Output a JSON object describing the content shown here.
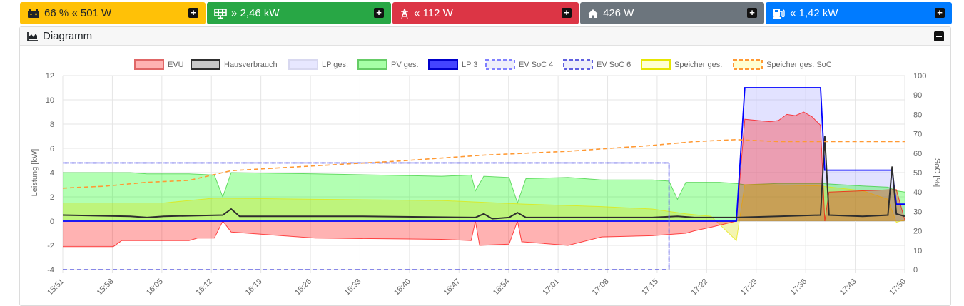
{
  "tiles": [
    {
      "name": "battery",
      "icon": "car-battery-icon",
      "arrow": "«",
      "label": "66 % « 501 W",
      "bg": "#ffc107",
      "fg": "#212529"
    },
    {
      "name": "pv",
      "icon": "solar-panel-icon",
      "arrow": "»",
      "label": "» 2,46 kW",
      "bg": "#28a745",
      "fg": "#ffffff"
    },
    {
      "name": "evu",
      "icon": "power-tower-icon",
      "arrow": "«",
      "label": "« 112 W",
      "bg": "#dc3545",
      "fg": "#ffffff"
    },
    {
      "name": "house",
      "icon": "home-icon",
      "label": "426 W",
      "bg": "#6c757d",
      "fg": "#ffffff"
    },
    {
      "name": "chargepoint",
      "icon": "charging-station-icon",
      "label": "« 1,42 kW",
      "bg": "#007bff",
      "fg": "#ffffff"
    }
  ],
  "diagram": {
    "title": "Diagramm"
  },
  "chart_data": {
    "type": "area",
    "x": [
      "15:51",
      "15:58",
      "16:05",
      "16:12",
      "16:19",
      "16:26",
      "16:33",
      "16:40",
      "16:47",
      "16:54",
      "17:01",
      "17:08",
      "17:15",
      "17:22",
      "17:29",
      "17:36",
      "17:43",
      "17:50"
    ],
    "ylabel_left": "Leistung [kW]",
    "ylabel_right": "SoC [%]",
    "ylim_left": [
      -4,
      12
    ],
    "yticks_left": [
      "-4",
      "-2",
      "0",
      "2",
      "4",
      "6",
      "8",
      "10",
      "12"
    ],
    "ylim_right": [
      0,
      100
    ],
    "yticks_right": [
      "0",
      "10",
      "20",
      "30",
      "40",
      "50",
      "60",
      "70",
      "80",
      "90",
      "100"
    ],
    "grid": true,
    "legend_position": "top",
    "series": [
      {
        "name": "EVU",
        "color": "#ff0000",
        "fill": "rgba(255,0,0,0.3)",
        "style": "fill",
        "points": [
          [
            0,
            -2.1
          ],
          [
            0.06,
            -2.1
          ],
          [
            0.07,
            -1.6
          ],
          [
            0.15,
            -1.6
          ],
          [
            0.16,
            -1.4
          ],
          [
            0.18,
            -1.4
          ],
          [
            0.19,
            0
          ],
          [
            0.2,
            -0.9
          ],
          [
            0.3,
            -1.4
          ],
          [
            0.45,
            -1.5
          ],
          [
            0.485,
            -1.6
          ],
          [
            0.49,
            0
          ],
          [
            0.495,
            -2.0
          ],
          [
            0.53,
            -1.9
          ],
          [
            0.54,
            0
          ],
          [
            0.545,
            -1.7
          ],
          [
            0.6,
            -2.0
          ],
          [
            0.64,
            -1.3
          ],
          [
            0.7,
            -1.2
          ],
          [
            0.74,
            -1.0
          ],
          [
            0.75,
            -0.8
          ],
          [
            0.77,
            -0.5
          ],
          [
            0.8,
            0
          ],
          [
            0.81,
            8.4
          ],
          [
            0.84,
            8.2
          ],
          [
            0.85,
            8.3
          ],
          [
            0.86,
            8.8
          ],
          [
            0.87,
            8.7
          ],
          [
            0.88,
            9.0
          ],
          [
            0.89,
            8.6
          ],
          [
            0.9,
            7.9
          ],
          [
            0.905,
            0
          ],
          [
            0.91,
            2.4
          ],
          [
            0.95,
            2.5
          ],
          [
            0.99,
            2.6
          ],
          [
            1.0,
            0.1
          ]
        ]
      },
      {
        "name": "Hausverbrauch",
        "color": "#2e2e2e",
        "style": "line",
        "points": [
          [
            0,
            0.5
          ],
          [
            0.08,
            0.4
          ],
          [
            0.1,
            0.3
          ],
          [
            0.12,
            0.4
          ],
          [
            0.19,
            0.5
          ],
          [
            0.2,
            1.0
          ],
          [
            0.21,
            0.4
          ],
          [
            0.35,
            0.4
          ],
          [
            0.49,
            0.3
          ],
          [
            0.5,
            0.6
          ],
          [
            0.51,
            0.2
          ],
          [
            0.53,
            0.3
          ],
          [
            0.54,
            0.7
          ],
          [
            0.55,
            0.3
          ],
          [
            0.7,
            0.3
          ],
          [
            0.73,
            0.4
          ],
          [
            0.75,
            0.3
          ],
          [
            0.8,
            0.3
          ],
          [
            0.85,
            0.4
          ],
          [
            0.9,
            0.5
          ],
          [
            0.905,
            7.0
          ],
          [
            0.91,
            0.5
          ],
          [
            0.95,
            0.4
          ],
          [
            0.98,
            0.5
          ],
          [
            0.985,
            4.5
          ],
          [
            0.99,
            0.6
          ],
          [
            1.0,
            0.4
          ]
        ]
      },
      {
        "name": "LP ges.",
        "color": "#6666ff",
        "fill": "rgba(160,160,255,0.3)",
        "style": "fill",
        "points": [
          [
            0,
            0
          ],
          [
            0.8,
            0
          ],
          [
            0.81,
            11.0
          ],
          [
            0.9,
            11.0
          ],
          [
            0.905,
            4.2
          ],
          [
            0.985,
            4.2
          ],
          [
            0.99,
            1.4
          ],
          [
            1.0,
            1.4
          ]
        ]
      },
      {
        "name": "PV ges.",
        "color": "#33cc33",
        "fill": "rgba(0,255,0,0.3)",
        "style": "fill",
        "points": [
          [
            0,
            4.0
          ],
          [
            0.08,
            4.0
          ],
          [
            0.1,
            3.9
          ],
          [
            0.15,
            3.9
          ],
          [
            0.18,
            3.8
          ],
          [
            0.19,
            2.0
          ],
          [
            0.2,
            4.0
          ],
          [
            0.3,
            3.9
          ],
          [
            0.45,
            3.7
          ],
          [
            0.485,
            3.8
          ],
          [
            0.49,
            2.5
          ],
          [
            0.5,
            3.7
          ],
          [
            0.53,
            3.6
          ],
          [
            0.54,
            1.5
          ],
          [
            0.55,
            3.5
          ],
          [
            0.6,
            3.6
          ],
          [
            0.64,
            3.4
          ],
          [
            0.7,
            3.4
          ],
          [
            0.72,
            3.3
          ],
          [
            0.73,
            1.8
          ],
          [
            0.74,
            3.2
          ],
          [
            0.78,
            3.2
          ],
          [
            0.8,
            3.1
          ],
          [
            0.81,
            3.0
          ],
          [
            0.85,
            3.1
          ],
          [
            0.9,
            3.1
          ],
          [
            0.95,
            2.9
          ],
          [
            0.98,
            2.8
          ],
          [
            0.99,
            2.5
          ],
          [
            1.0,
            2.4
          ]
        ]
      },
      {
        "name": "LP 3",
        "color": "#0000ff",
        "fill": "rgba(0,0,255,0.7)",
        "style": "line",
        "points": [
          [
            0,
            0
          ],
          [
            0.8,
            0
          ],
          [
            0.81,
            11.0
          ],
          [
            0.9,
            11.0
          ],
          [
            0.905,
            4.2
          ],
          [
            0.985,
            4.2
          ],
          [
            0.99,
            1.4
          ],
          [
            1.0,
            1.4
          ]
        ]
      },
      {
        "name": "EV SoC 4",
        "color": "#8080ff",
        "style": "dash",
        "axis": "right",
        "points": [
          [
            0,
            55
          ],
          [
            0.72,
            55
          ],
          [
            0.72,
            0
          ]
        ]
      },
      {
        "name": "EV SoC 6",
        "color": "#6060e0",
        "style": "dash",
        "axis": "right",
        "points": [
          [
            0,
            0
          ],
          [
            0.72,
            0
          ],
          [
            0.72,
            55
          ],
          [
            0,
            55
          ]
        ]
      },
      {
        "name": "Speicher ges.",
        "color": "#e6e600",
        "fill": "rgba(220,220,0,0.3)",
        "style": "fill",
        "points": [
          [
            0,
            1.5
          ],
          [
            0.12,
            1.5
          ],
          [
            0.18,
            1.9
          ],
          [
            0.3,
            1.8
          ],
          [
            0.45,
            1.7
          ],
          [
            0.55,
            1.4
          ],
          [
            0.64,
            1.2
          ],
          [
            0.7,
            1.0
          ],
          [
            0.74,
            0.6
          ],
          [
            0.77,
            0.4
          ],
          [
            0.8,
            -1.6
          ],
          [
            0.81,
            3.0
          ],
          [
            0.84,
            3.0
          ],
          [
            0.9,
            2.9
          ],
          [
            0.95,
            2.5
          ],
          [
            0.98,
            1.8
          ],
          [
            0.99,
            -0.1
          ],
          [
            1.0,
            0.1
          ]
        ]
      },
      {
        "name": "Speicher ges. SoC",
        "color": "#ff9933",
        "style": "dash",
        "axis": "right",
        "points": [
          [
            0,
            42
          ],
          [
            0.05,
            43
          ],
          [
            0.1,
            45
          ],
          [
            0.15,
            46
          ],
          [
            0.2,
            51
          ],
          [
            0.28,
            53
          ],
          [
            0.4,
            56
          ],
          [
            0.5,
            59
          ],
          [
            0.6,
            61
          ],
          [
            0.7,
            64
          ],
          [
            0.75,
            66
          ],
          [
            0.8,
            67
          ],
          [
            0.85,
            66
          ],
          [
            0.9,
            66
          ],
          [
            0.95,
            66
          ],
          [
            1.0,
            66
          ]
        ]
      }
    ]
  }
}
